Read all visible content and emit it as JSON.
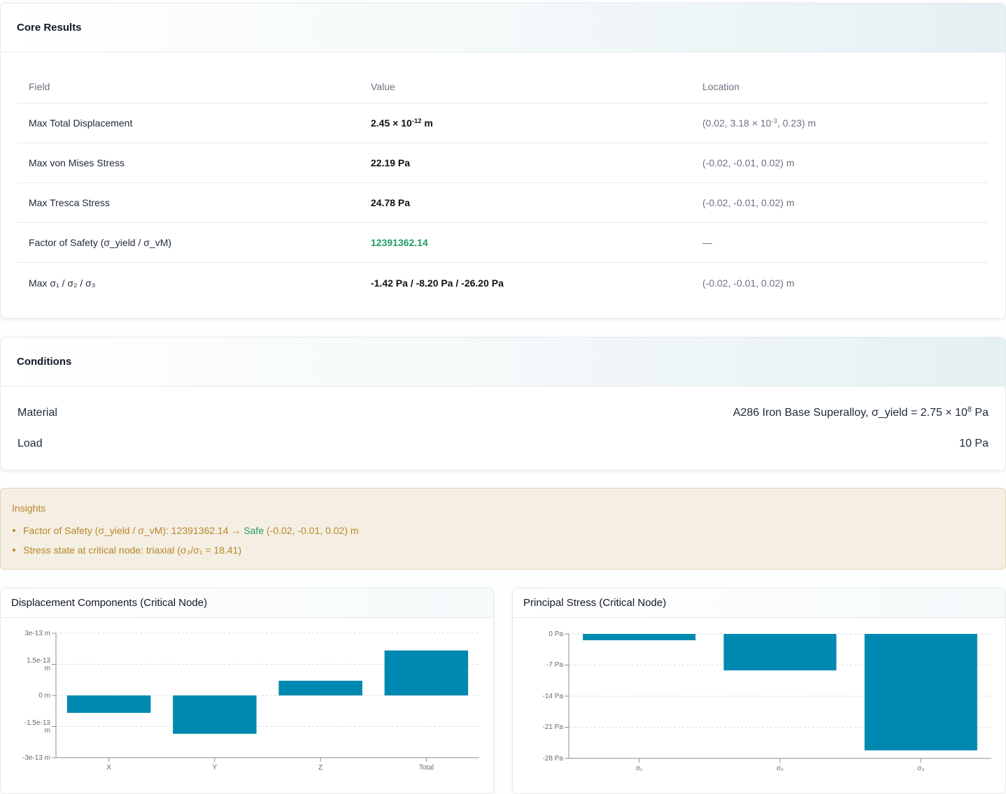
{
  "theme": {
    "accent": "#0089b0",
    "safe": "#1f9d63",
    "insight": "#b8862b"
  },
  "core_results": {
    "title": "Core Results",
    "columns": [
      "Field",
      "Value",
      "Location"
    ],
    "rows": [
      {
        "field": "Max Total Displacement",
        "value": {
          "text": "2.45 × 10",
          "sup": "-12",
          "after": " m"
        },
        "location": {
          "text": "(0.02, 3.18 × 10",
          "sup": "-3",
          "after": ", 0.23) m"
        }
      },
      {
        "field": "Max von Mises Stress",
        "value": {
          "text": "22.19 Pa"
        },
        "location": {
          "text": "(-0.02, -0.01, 0.02) m"
        }
      },
      {
        "field": "Max Tresca Stress",
        "value": {
          "text": "24.78 Pa"
        },
        "location": {
          "text": "(-0.02, -0.01, 0.02) m"
        }
      },
      {
        "field": "Factor of Safety (σ_yield / σ_vM)",
        "value": {
          "text": "12391362.14"
        },
        "location": {
          "text": "—"
        }
      },
      {
        "field": "Max σ₁ / σ₂ / σ₃",
        "value": {
          "text": "-1.42 Pa / -8.20 Pa / -26.20 Pa"
        },
        "location": {
          "text": "(-0.02, -0.01, 0.02) m"
        }
      }
    ]
  },
  "conditions": {
    "title": "Conditions",
    "rows": [
      {
        "label": "Material",
        "value": {
          "text": "A286 Iron Base Superalloy, σ_yield = 2.75 × 10",
          "sup": "8",
          "after": " Pa"
        }
      },
      {
        "label": "Load",
        "value": {
          "text": "10 Pa"
        }
      }
    ]
  },
  "insights": {
    "title": "Insights",
    "items": [
      {
        "text": "Factor of Safety (σ_yield / σ_vM): 12391362.14 → ",
        "status": "Safe",
        "after": " (-0.02, -0.01, 0.02) m"
      },
      {
        "text": "Stress state at critical node: triaxial (σ₃/σ₁ = 18.41)"
      }
    ]
  },
  "chart_data": [
    {
      "type": "bar",
      "title": "Displacement Components (Critical Node)",
      "categories": [
        "X",
        "Y",
        "Z",
        "Total"
      ],
      "values": [
        -8.4e-14,
        -1.85e-13,
        7.1e-14,
        2.17e-13
      ],
      "ylim": [
        -3e-13,
        3e-13
      ],
      "yticks": [
        {
          "value": 3e-13,
          "label": "3e-13 m"
        },
        {
          "value": 1.5e-13,
          "label": "1.5e-13 m"
        },
        {
          "value": 0,
          "label": "0 m"
        },
        {
          "value": -1.5e-13,
          "label": "-1.5e-13 m"
        },
        {
          "value": -3e-13,
          "label": "-3e-13 m"
        }
      ],
      "grid": true,
      "color": "#0089b0"
    },
    {
      "type": "bar",
      "title": "Principal Stress (Critical Node)",
      "categories": [
        "σ₁",
        "σ₂",
        "σ₃"
      ],
      "values": [
        -1.42,
        -8.2,
        -26.2
      ],
      "ylim": [
        -28,
        0
      ],
      "yticks": [
        {
          "value": 0,
          "label": "0 Pa"
        },
        {
          "value": -7,
          "label": "-7 Pa"
        },
        {
          "value": -14,
          "label": "-14 Pa"
        },
        {
          "value": -21,
          "label": "-21 Pa"
        },
        {
          "value": -28,
          "label": "-28 Pa"
        }
      ],
      "grid": true,
      "color": "#0089b0"
    }
  ]
}
